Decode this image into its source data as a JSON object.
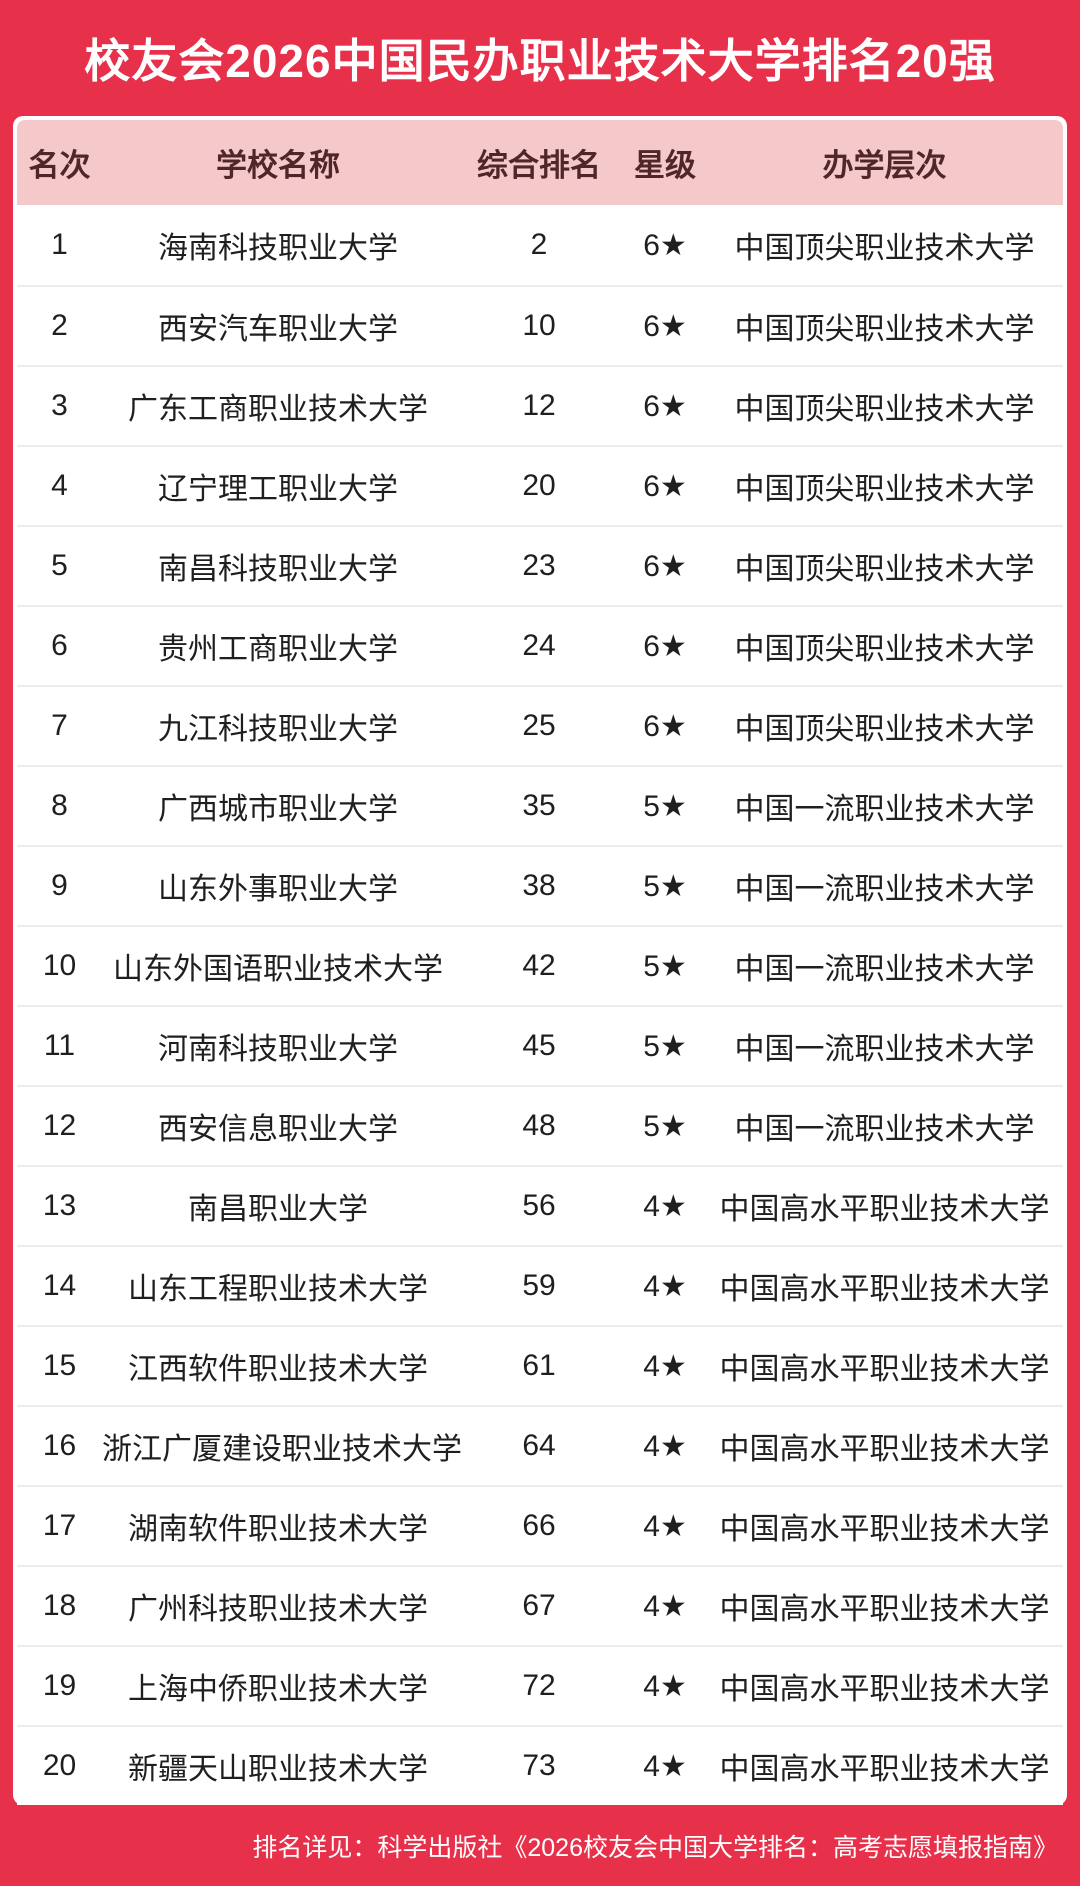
{
  "page": {
    "title": "校友会2026中国民办职业技术大学排名20强",
    "footer_note": "排名详见：科学出版社《2026校友会中国大学排名：高考志愿填报指南》"
  },
  "colors": {
    "accent_red": "#e7304a",
    "header_bg": "#f5c9c9",
    "header_text": "#512628",
    "row_text": "#1f1f1f",
    "row_separator": "#ececec",
    "title_text": "#ffffff"
  },
  "chart_data": {
    "type": "table",
    "title": "校友会2026中国民办职业技术大学排名20强",
    "columns": [
      "名次",
      "学校名称",
      "综合排名",
      "星级",
      "办学层次"
    ],
    "rows": [
      {
        "rank": "1",
        "name": "海南科技职业大学",
        "overall": "2",
        "star": "6★",
        "level": "中国顶尖职业技术大学"
      },
      {
        "rank": "2",
        "name": "西安汽车职业大学",
        "overall": "10",
        "star": "6★",
        "level": "中国顶尖职业技术大学"
      },
      {
        "rank": "3",
        "name": "广东工商职业技术大学",
        "overall": "12",
        "star": "6★",
        "level": "中国顶尖职业技术大学"
      },
      {
        "rank": "4",
        "name": "辽宁理工职业大学",
        "overall": "20",
        "star": "6★",
        "level": "中国顶尖职业技术大学"
      },
      {
        "rank": "5",
        "name": "南昌科技职业大学",
        "overall": "23",
        "star": "6★",
        "level": "中国顶尖职业技术大学"
      },
      {
        "rank": "6",
        "name": "贵州工商职业大学",
        "overall": "24",
        "star": "6★",
        "level": "中国顶尖职业技术大学"
      },
      {
        "rank": "7",
        "name": "九江科技职业大学",
        "overall": "25",
        "star": "6★",
        "level": "中国顶尖职业技术大学"
      },
      {
        "rank": "8",
        "name": "广西城市职业大学",
        "overall": "35",
        "star": "5★",
        "level": "中国一流职业技术大学"
      },
      {
        "rank": "9",
        "name": "山东外事职业大学",
        "overall": "38",
        "star": "5★",
        "level": "中国一流职业技术大学"
      },
      {
        "rank": "10",
        "name": "山东外国语职业技术大学",
        "overall": "42",
        "star": "5★",
        "level": "中国一流职业技术大学"
      },
      {
        "rank": "11",
        "name": "河南科技职业大学",
        "overall": "45",
        "star": "5★",
        "level": "中国一流职业技术大学"
      },
      {
        "rank": "12",
        "name": "西安信息职业大学",
        "overall": "48",
        "star": "5★",
        "level": "中国一流职业技术大学"
      },
      {
        "rank": "13",
        "name": "南昌职业大学",
        "overall": "56",
        "star": "4★",
        "level": "中国高水平职业技术大学"
      },
      {
        "rank": "14",
        "name": "山东工程职业技术大学",
        "overall": "59",
        "star": "4★",
        "level": "中国高水平职业技术大学"
      },
      {
        "rank": "15",
        "name": "江西软件职业技术大学",
        "overall": "61",
        "star": "4★",
        "level": "中国高水平职业技术大学"
      },
      {
        "rank": "16",
        "name": "浙江广厦建设职业技术大学",
        "overall": "64",
        "star": "4★",
        "level": "中国高水平职业技术大学"
      },
      {
        "rank": "17",
        "name": "湖南软件职业技术大学",
        "overall": "66",
        "star": "4★",
        "level": "中国高水平职业技术大学"
      },
      {
        "rank": "18",
        "name": "广州科技职业技术大学",
        "overall": "67",
        "star": "4★",
        "level": "中国高水平职业技术大学"
      },
      {
        "rank": "19",
        "name": "上海中侨职业技术大学",
        "overall": "72",
        "star": "4★",
        "level": "中国高水平职业技术大学"
      },
      {
        "rank": "20",
        "name": "新疆天山职业技术大学",
        "overall": "73",
        "star": "4★",
        "level": "中国高水平职业技术大学"
      }
    ]
  }
}
